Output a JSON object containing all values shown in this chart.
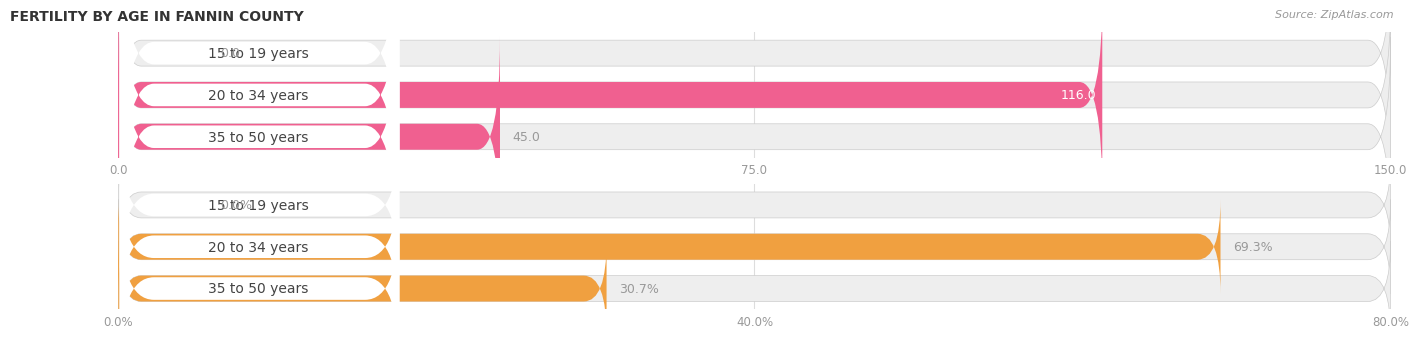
{
  "title": "FERTILITY BY AGE IN FANNIN COUNTY",
  "source": "Source: ZipAtlas.com",
  "top_chart": {
    "categories": [
      "15 to 19 years",
      "20 to 34 years",
      "35 to 50 years"
    ],
    "values": [
      0.0,
      116.0,
      45.0
    ],
    "xlim": [
      0,
      150
    ],
    "xticks": [
      0.0,
      75.0,
      150.0
    ],
    "xtick_labels": [
      "0.0",
      "75.0",
      "150.0"
    ],
    "bar_color": "#f06090",
    "bar_light_color": "#f9c0d0",
    "bar_bg_color": "#eeeeee",
    "label_inside_color": "#ffffff",
    "label_outside_color": "#999999",
    "label_threshold": 110
  },
  "bottom_chart": {
    "categories": [
      "15 to 19 years",
      "20 to 34 years",
      "35 to 50 years"
    ],
    "values": [
      0.0,
      69.3,
      30.7
    ],
    "xlim": [
      0,
      80
    ],
    "xticks": [
      0.0,
      40.0,
      80.0
    ],
    "xtick_labels": [
      "0.0%",
      "40.0%",
      "80.0%"
    ],
    "bar_color": "#f0a040",
    "bar_light_color": "#f8d090",
    "bar_bg_color": "#eeeeee",
    "label_inside_color": "#ffffff",
    "label_outside_color": "#999999",
    "label_threshold": 70
  },
  "category_label_color": "#444444",
  "category_label_fontsize": 10,
  "bar_height": 0.62,
  "bg_color": "#ffffff",
  "grid_color": "#dddddd",
  "title_fontsize": 10,
  "source_fontsize": 8
}
